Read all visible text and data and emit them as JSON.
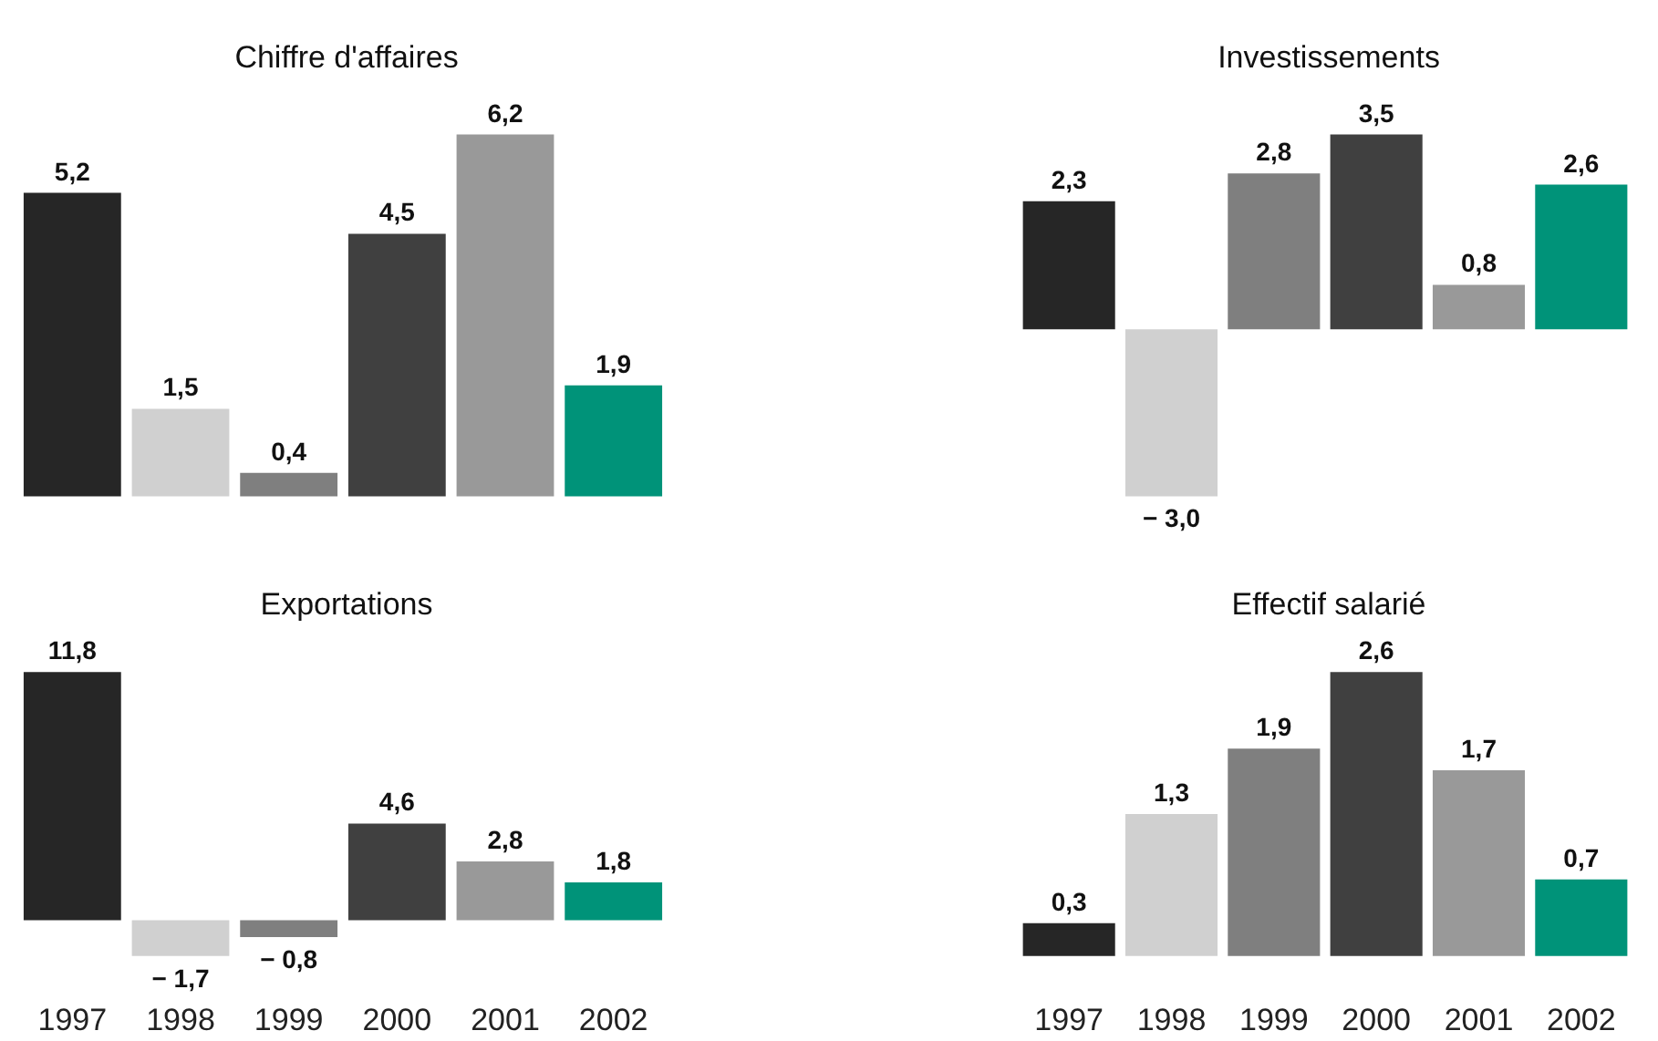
{
  "chart_data": [
    {
      "type": "bar",
      "title": "Chiffre d'affaires",
      "categories": [
        "1997",
        "1998",
        "1999",
        "2000",
        "2001",
        "2002"
      ],
      "values": [
        5.2,
        1.5,
        0.4,
        4.5,
        6.2,
        1.9
      ],
      "value_labels": [
        "5,2",
        "1,5",
        "0,4",
        "4,5",
        "6,2",
        "1,9"
      ],
      "colors": [
        "#262626",
        "#d0d0d0",
        "#7f7f7f",
        "#404040",
        "#999999",
        "#009379"
      ],
      "tick_labels": false
    },
    {
      "type": "bar",
      "title": "Investissements",
      "categories": [
        "1997",
        "1998",
        "1999",
        "2000",
        "2001",
        "2002"
      ],
      "values": [
        2.3,
        -3.0,
        2.8,
        3.5,
        0.8,
        2.6
      ],
      "value_labels": [
        "2,3",
        "− 3,0",
        "2,8",
        "3,5",
        "0,8",
        "2,6"
      ],
      "colors": [
        "#262626",
        "#d0d0d0",
        "#7f7f7f",
        "#404040",
        "#999999",
        "#009379"
      ],
      "tick_labels": false
    },
    {
      "type": "bar",
      "title": "Exportations",
      "categories": [
        "1997",
        "1998",
        "1999",
        "2000",
        "2001",
        "2002"
      ],
      "values": [
        11.8,
        -1.7,
        -0.8,
        4.6,
        2.8,
        1.8
      ],
      "value_labels": [
        "11,8",
        "− 1,7",
        "− 0,8",
        "4,6",
        "2,8",
        "1,8"
      ],
      "colors": [
        "#262626",
        "#d0d0d0",
        "#7f7f7f",
        "#404040",
        "#999999",
        "#009379"
      ],
      "tick_labels": "x"
    },
    {
      "type": "bar",
      "title": "Effectif salarié",
      "categories": [
        "1997",
        "1998",
        "1999",
        "2000",
        "2001",
        "2002"
      ],
      "values": [
        0.3,
        1.3,
        1.9,
        2.6,
        1.7,
        0.7
      ],
      "value_labels": [
        "0,3",
        "1,3",
        "1,9",
        "2,6",
        "1,7",
        "0,7"
      ],
      "colors": [
        "#262626",
        "#d0d0d0",
        "#7f7f7f",
        "#404040",
        "#999999",
        "#009379"
      ],
      "tick_labels": "x"
    }
  ]
}
